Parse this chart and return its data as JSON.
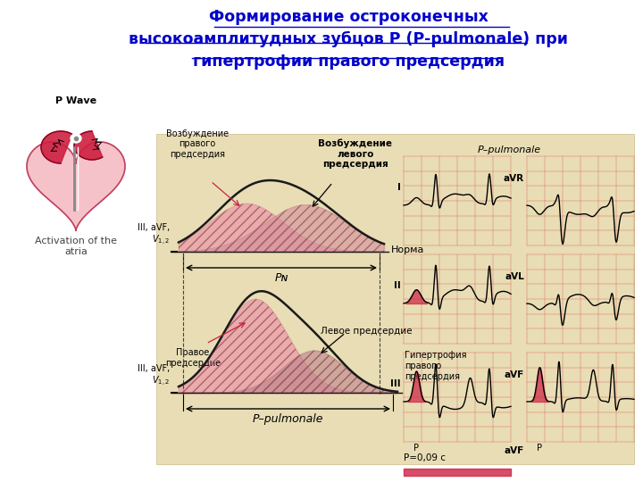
{
  "title_line1": "Формирование остроконечных",
  "title_line2": "высокоамплитудных зубцов Р (P-pulmonale) при",
  "title_line3": "гипертрофии правого предсердия",
  "title_color": "#0000cc",
  "bg_color": "#ffffff",
  "diagram_bg": "#e8ddb5",
  "norm_label": "Норма",
  "hyp_label": "Гипертрофия\nправого\nпредсердия",
  "III_aVF_V12": "III, aVF,\nV₁₂",
  "PN_label": "Pɴ",
  "P_pulmonale_label": "P–pulmonale",
  "P_pulmonale_ecg_label": "P–pulmonale",
  "vozb_prav": "Возбуждение\nправого\nпредсердия",
  "vozb_lev": "Возбуждение\nлевого\nпредсердия",
  "prav_pred": "Правое\nпредсердие",
  "lev_pred": "Левое предсердие",
  "P_eq_09": "P=0,09 с",
  "p_wave_label": "P Wave",
  "activation_label": "Activation of the\natria"
}
